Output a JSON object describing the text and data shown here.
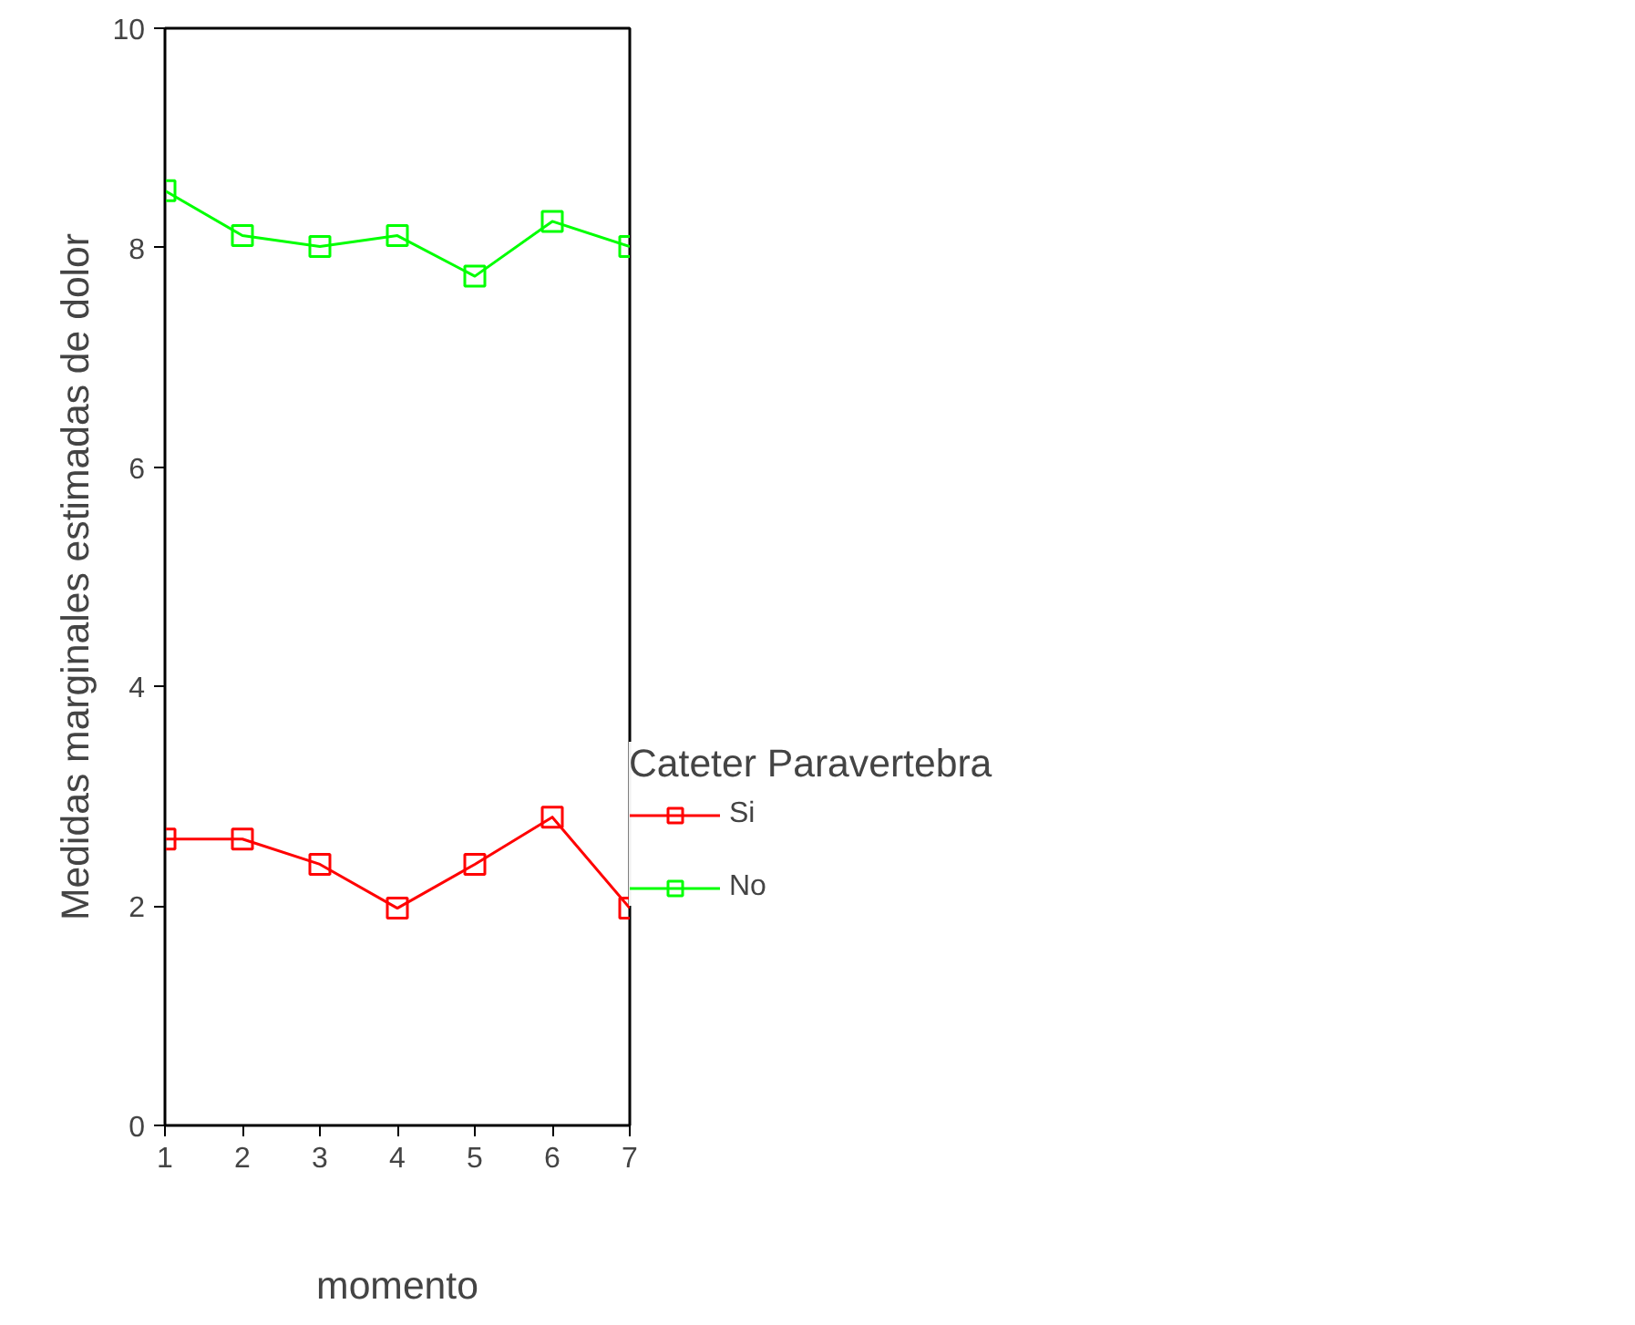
{
  "chart_data": {
    "type": "line",
    "xlabel": "momento",
    "ylabel": "Medidas marginales estimadas de dolor",
    "legend_title": "Cateter Paravertebra",
    "x": [
      1,
      2,
      3,
      4,
      5,
      6,
      7
    ],
    "series": [
      {
        "name": "Si",
        "color": "#ff0000",
        "values": [
          2.61,
          2.61,
          2.38,
          1.98,
          2.38,
          2.81,
          1.98
        ]
      },
      {
        "name": "No",
        "color": "#00ff00",
        "values": [
          8.52,
          8.11,
          8.01,
          8.11,
          7.74,
          8.24,
          8.01
        ]
      }
    ],
    "xlim": [
      1,
      7
    ],
    "xticks": [
      1,
      2,
      3,
      4,
      5,
      6,
      7
    ],
    "ylim": [
      0,
      10
    ],
    "yticks": [
      0,
      2,
      4,
      6,
      8,
      10
    ],
    "grid": false,
    "legend": "right",
    "marker": "square",
    "line_style": "solid"
  }
}
